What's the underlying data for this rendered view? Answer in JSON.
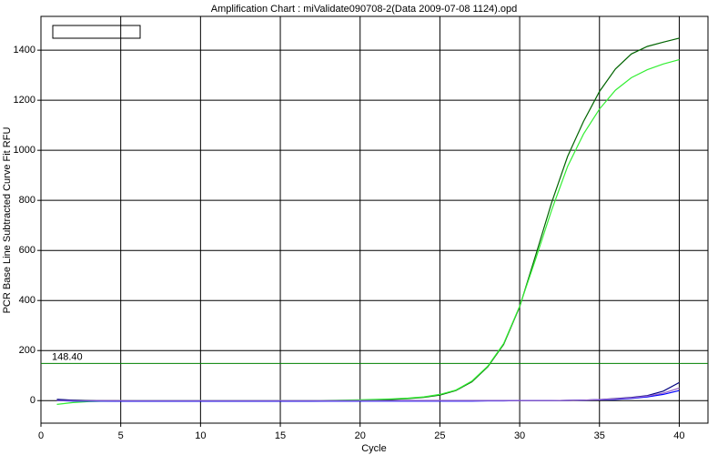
{
  "chart_data": {
    "type": "line",
    "title": "Amplification Chart : miValidate090708-2(Data 2009-07-08 1124).opd",
    "xlabel": "Cycle",
    "ylabel": "PCR Base Line Subtracted Curve Fit RFU",
    "x": [
      1,
      2,
      3,
      4,
      5,
      6,
      7,
      8,
      9,
      10,
      11,
      12,
      13,
      14,
      15,
      16,
      17,
      18,
      19,
      20,
      21,
      22,
      23,
      24,
      25,
      26,
      27,
      28,
      29,
      30,
      31,
      32,
      33,
      34,
      35,
      36,
      37,
      38,
      39,
      40
    ],
    "series": [
      {
        "color": "#006400",
        "values": [
          3,
          2,
          1,
          0,
          0,
          0,
          0,
          0,
          0,
          0,
          0,
          0,
          0,
          0,
          0,
          0,
          0,
          0,
          1,
          2,
          3,
          5,
          8,
          13,
          22,
          40,
          75,
          135,
          225,
          375,
          580,
          790,
          975,
          1115,
          1235,
          1325,
          1385,
          1415,
          1432,
          1448
        ]
      },
      {
        "color": "#33ee33",
        "values": [
          -15,
          -8,
          -4,
          -2,
          -1,
          0,
          0,
          0,
          0,
          0,
          0,
          0,
          0,
          0,
          0,
          0,
          0,
          1,
          2,
          3,
          5,
          7,
          10,
          15,
          25,
          42,
          78,
          138,
          228,
          378,
          565,
          760,
          935,
          1065,
          1165,
          1240,
          1290,
          1322,
          1345,
          1362
        ]
      },
      {
        "color": "#000080",
        "values": [
          5,
          2,
          0,
          -1,
          -2,
          -2,
          -2,
          -2,
          -2,
          -2,
          -2,
          -2,
          -2,
          -2,
          -2,
          -2,
          -2,
          -1,
          -1,
          -1,
          0,
          0,
          0,
          0,
          0,
          0,
          0,
          0,
          0,
          0,
          0,
          0,
          1,
          2,
          4,
          8,
          13,
          20,
          38,
          72
        ]
      },
      {
        "color": "#0000ff",
        "values": [
          0,
          -2,
          -2,
          -2,
          -2,
          -2,
          -2,
          -2,
          -2,
          -2,
          -2,
          -2,
          -2,
          -2,
          -2,
          -2,
          -2,
          -2,
          -2,
          -2,
          -2,
          -2,
          -2,
          -2,
          -2,
          -2,
          -2,
          -1,
          -1,
          0,
          0,
          0,
          1,
          2,
          3,
          5,
          9,
          15,
          25,
          40
        ]
      },
      {
        "color": "#9966cc",
        "values": [
          0,
          0,
          0,
          0,
          0,
          0,
          0,
          0,
          0,
          0,
          0,
          0,
          0,
          0,
          0,
          0,
          0,
          0,
          0,
          0,
          0,
          0,
          0,
          0,
          0,
          0,
          0,
          0,
          0,
          0,
          0,
          0,
          1,
          2,
          4,
          7,
          11,
          18,
          30,
          50
        ]
      }
    ],
    "threshold": {
      "value": 148.4,
      "label": "148.40",
      "color": "#008000"
    },
    "xlim": [
      0,
      41.8
    ],
    "ylim": [
      -90,
      1535
    ],
    "xticks": [
      0,
      5,
      10,
      15,
      20,
      25,
      30,
      35,
      40
    ],
    "yticks": [
      0,
      200,
      400,
      600,
      800,
      1000,
      1200,
      1400
    ],
    "grid": true
  }
}
